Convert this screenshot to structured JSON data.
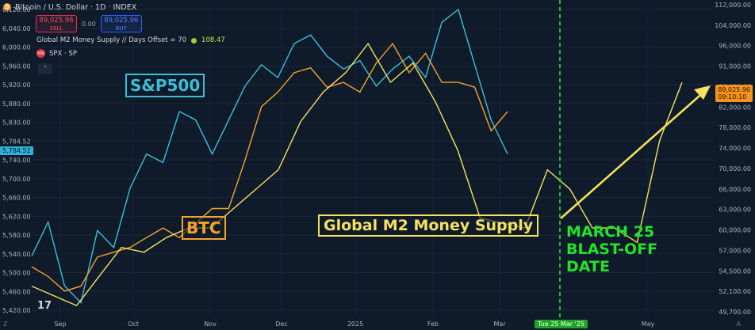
{
  "header": {
    "symbol_title": "Bitcoin / U.S. Dollar · 1D · INDEX",
    "sell_price": "89,025.96",
    "sell_label": "SELL",
    "spread": "0.00",
    "buy_price": "89,025.96",
    "buy_label": "BUY"
  },
  "indicators": {
    "m2_label": "Global M2 Money Supply // Days Offset = 70",
    "m2_value": "108.47",
    "spx_label": "SPX · SP",
    "spx_badge": "500"
  },
  "annotations": {
    "sp500": "S&P500",
    "btc": "BTC",
    "m2": "Global M2 Money Supply",
    "march_line1": "MARCH 25",
    "march_line2": "BLAST-OFF",
    "march_line3": "DATE"
  },
  "tags": {
    "price_line1": "89,025.96",
    "price_line2": "09:10:10",
    "spx_value": "5,784.52",
    "date": "Tue 25 Mar '25"
  },
  "colors": {
    "background": "#0f1b2b",
    "spx": "#3bbfd6",
    "btc": "#f5a32a",
    "m2": "#f6e25d",
    "marker": "#22e32a"
  },
  "chart_data": {
    "type": "line",
    "x_ticks": [
      "Sep",
      "Oct",
      "Nov",
      "Dec",
      "2025",
      "Feb",
      "Mar",
      "Tue 25 Mar '25",
      "May"
    ],
    "left_axis": {
      "ticks": [
        "6,120.00",
        "6,040.00",
        "6,000.00",
        "5,960.00",
        "5,920.00",
        "5,880.00",
        "5,830.00",
        "5,784.52",
        "5,740.00",
        "5,700.00",
        "5,660.00",
        "5,620.00",
        "5,580.00",
        "5,540.00",
        "5,500.00",
        "5,460.00",
        "5,420.00"
      ]
    },
    "right_axis": {
      "ticks": [
        "112,000.00",
        "104,000.00",
        "96,000.00",
        "91,000.00",
        "86,000.00",
        "82,000.00",
        "78,000.00",
        "74,000.00",
        "70,000.00",
        "66,000.00",
        "63,000.00",
        "60,000.00",
        "57,000.00",
        "54,500.00",
        "52,100.00",
        "49,700.00"
      ]
    },
    "series": [
      {
        "name": "S&P500",
        "values": [
          5540,
          5620,
          5470,
          5430,
          5600,
          5560,
          5700,
          5780,
          5760,
          5880,
          5860,
          5780,
          5860,
          5940,
          5990,
          5960,
          6040,
          6060,
          6010,
          5980,
          6000,
          5940,
          5980,
          6010,
          5960,
          6090,
          6120,
          5990,
          5860,
          5780
        ]
      },
      {
        "name": "BTC",
        "values": [
          58000,
          56000,
          53000,
          54000,
          60000,
          61000,
          62000,
          64000,
          66000,
          64000,
          67000,
          70000,
          70000,
          80000,
          91000,
          94000,
          98000,
          99000,
          95000,
          96000,
          94000,
          100000,
          104000,
          98000,
          102000,
          96000,
          96000,
          95000,
          86000,
          90000
        ]
      },
      {
        "name": "Global M2 Money Supply",
        "values": [
          54000,
          52000,
          50000,
          56000,
          62000,
          61000,
          64000,
          66000,
          66000,
          70000,
          74000,
          78000,
          88000,
          94000,
          98000,
          104000,
          96000,
          100000,
          92000,
          82000,
          68000,
          67000,
          66000,
          78000,
          74000,
          66000,
          66000,
          63000,
          84000,
          96000
        ]
      }
    ],
    "vertical_marker": "Tue 25 Mar '25",
    "arrow": "from March 25 toward 91,000.00"
  }
}
